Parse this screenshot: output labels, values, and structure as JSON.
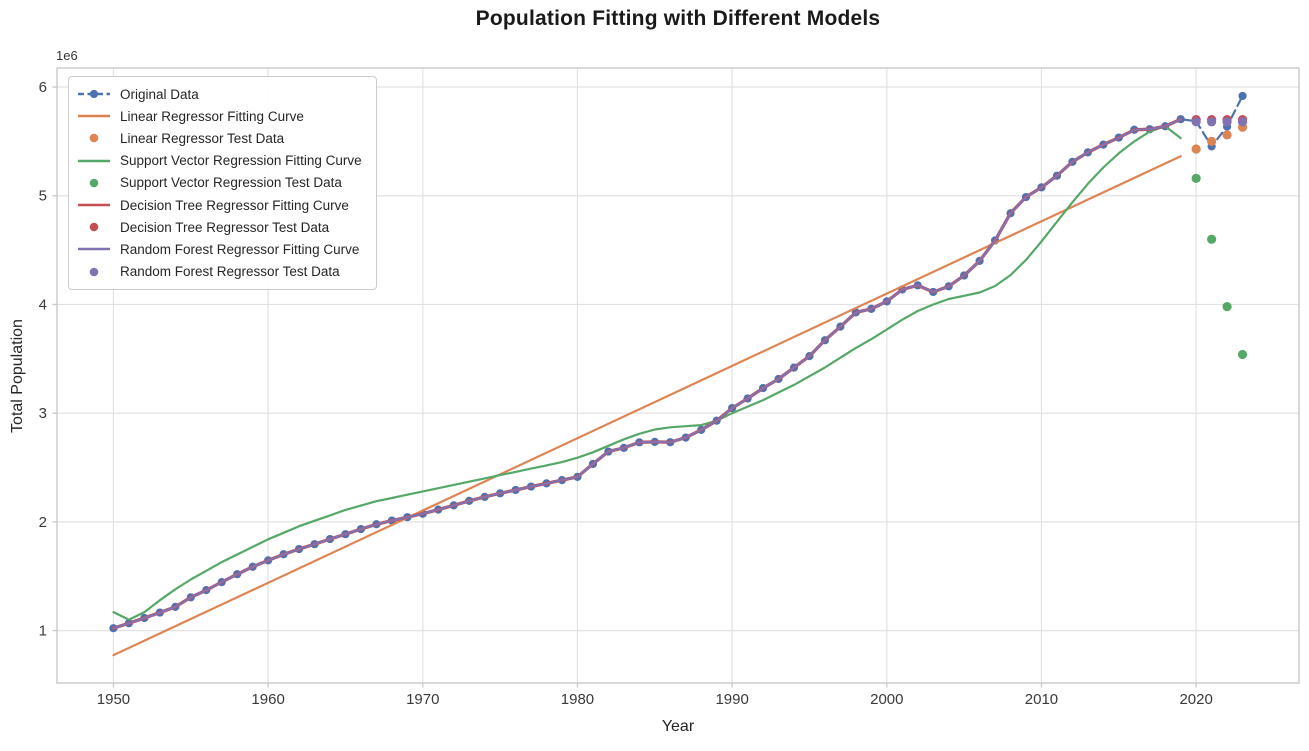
{
  "chart_data": {
    "type": "line",
    "title": "Population Fitting with Different Models",
    "xlabel": "Year",
    "ylabel": "Total Population",
    "y_offset_label": "1e6",
    "grid": true,
    "legend_position": "upper-left",
    "x_ticks": [
      1950,
      1960,
      1970,
      1980,
      1990,
      2000,
      2010,
      2020
    ],
    "y_ticks": [
      1,
      2,
      3,
      4,
      5,
      6
    ],
    "xlim": [
      1946.35,
      2026.65
    ],
    "ylim_e6": [
      0.518,
      6.175
    ],
    "colors": {
      "blue": "#4C72B0",
      "orange": "#DD8452",
      "green": "#55A868",
      "red": "#C44E52",
      "purple": "#8172B3",
      "grid": "#e2e2e2",
      "spine": "#c9c9c9",
      "title": "#1a1a1a",
      "tick_text": "#3a3a3a"
    },
    "arrays": {
      "all_years": [
        1950,
        1951,
        1952,
        1953,
        1954,
        1955,
        1956,
        1957,
        1958,
        1959,
        1960,
        1961,
        1962,
        1963,
        1964,
        1965,
        1966,
        1967,
        1968,
        1969,
        1970,
        1971,
        1972,
        1973,
        1974,
        1975,
        1976,
        1977,
        1978,
        1979,
        1980,
        1981,
        1982,
        1983,
        1984,
        1985,
        1986,
        1987,
        1988,
        1989,
        1990,
        1991,
        1992,
        1993,
        1994,
        1995,
        1996,
        1997,
        1998,
        1999,
        2000,
        2001,
        2002,
        2003,
        2004,
        2005,
        2006,
        2007,
        2008,
        2009,
        2010,
        2011,
        2012,
        2013,
        2014,
        2015,
        2016,
        2017,
        2018,
        2019,
        2020,
        2021,
        2022,
        2023
      ],
      "train_years": [
        1950,
        1951,
        1952,
        1953,
        1954,
        1955,
        1956,
        1957,
        1958,
        1959,
        1960,
        1961,
        1962,
        1963,
        1964,
        1965,
        1966,
        1967,
        1968,
        1969,
        1970,
        1971,
        1972,
        1973,
        1974,
        1975,
        1976,
        1977,
        1978,
        1979,
        1980,
        1981,
        1982,
        1983,
        1984,
        1985,
        1986,
        1987,
        1988,
        1989,
        1990,
        1991,
        1992,
        1993,
        1994,
        1995,
        1996,
        1997,
        1998,
        1999,
        2000,
        2001,
        2002,
        2003,
        2004,
        2005,
        2006,
        2007,
        2008,
        2009,
        2010,
        2011,
        2012,
        2013,
        2014,
        2015,
        2016,
        2017,
        2018,
        2019
      ],
      "test_years": [
        2020,
        2021,
        2022,
        2023
      ],
      "original_e6": [
        1.022,
        1.068,
        1.116,
        1.166,
        1.218,
        1.306,
        1.372,
        1.446,
        1.519,
        1.587,
        1.646,
        1.702,
        1.75,
        1.795,
        1.842,
        1.887,
        1.934,
        1.978,
        2.012,
        2.043,
        2.075,
        2.113,
        2.152,
        2.193,
        2.23,
        2.263,
        2.293,
        2.325,
        2.354,
        2.384,
        2.414,
        2.533,
        2.647,
        2.681,
        2.732,
        2.736,
        2.733,
        2.775,
        2.846,
        2.931,
        3.047,
        3.135,
        3.231,
        3.314,
        3.419,
        3.525,
        3.671,
        3.796,
        3.927,
        3.959,
        4.028,
        4.138,
        4.176,
        4.115,
        4.167,
        4.266,
        4.401,
        4.589,
        4.839,
        4.988,
        5.077,
        5.184,
        5.312,
        5.399,
        5.47,
        5.535,
        5.607,
        5.612,
        5.639,
        5.704,
        5.686,
        5.454,
        5.637,
        5.918
      ],
      "linear_years": [
        1950,
        2019
      ],
      "linear_fit_e6": [
        0.775,
        5.364
      ],
      "svr_fit_e6": [
        1.17,
        1.1,
        1.17,
        1.28,
        1.38,
        1.47,
        1.55,
        1.63,
        1.7,
        1.77,
        1.84,
        1.9,
        1.96,
        2.01,
        2.06,
        2.11,
        2.15,
        2.19,
        2.22,
        2.25,
        2.28,
        2.31,
        2.34,
        2.37,
        2.4,
        2.43,
        2.46,
        2.49,
        2.52,
        2.55,
        2.59,
        2.64,
        2.7,
        2.76,
        2.81,
        2.85,
        2.87,
        2.88,
        2.89,
        2.93,
        3.0,
        3.06,
        3.12,
        3.19,
        3.26,
        3.34,
        3.42,
        3.51,
        3.6,
        3.68,
        3.77,
        3.86,
        3.94,
        4.0,
        4.05,
        4.08,
        4.11,
        4.17,
        4.27,
        4.41,
        4.58,
        4.76,
        4.94,
        5.11,
        5.26,
        5.39,
        5.5,
        5.59,
        5.64,
        5.53
      ],
      "linear_test_e6": [
        5.43,
        5.5,
        5.56,
        5.63
      ],
      "svr_test_e6": [
        5.16,
        4.6,
        3.98,
        3.54
      ],
      "dt_test_e6": [
        5.7,
        5.7,
        5.7,
        5.7
      ],
      "rf_test_e6": [
        5.68,
        5.68,
        5.68,
        5.68
      ]
    },
    "series": [
      {
        "label": "Original Data",
        "kind": "line-marker",
        "dash": true,
        "color": "blue",
        "x": "all_years",
        "y": "original_e6"
      },
      {
        "label": "Linear Regressor Fitting Curve",
        "kind": "line",
        "color": "orange",
        "x": "linear_years",
        "y": "linear_fit_e6"
      },
      {
        "label": "Linear Regressor Test Data",
        "kind": "scatter",
        "color": "orange",
        "x": "test_years",
        "y": "linear_test_e6"
      },
      {
        "label": "Support Vector Regression Fitting Curve",
        "kind": "line",
        "color": "green",
        "x": "train_years",
        "y": "svr_fit_e6"
      },
      {
        "label": "Support Vector Regression Test Data",
        "kind": "scatter",
        "color": "green",
        "x": "test_years",
        "y": "svr_test_e6"
      },
      {
        "label": "Decision Tree Regressor Fitting Curve",
        "kind": "line",
        "color": "red",
        "x": "train_years",
        "y": "original_train_e6"
      },
      {
        "label": "Decision Tree Regressor Test Data",
        "kind": "scatter",
        "color": "red",
        "x": "test_years",
        "y": "dt_test_e6"
      },
      {
        "label": "Random Forest Regressor Fitting Curve",
        "kind": "line",
        "color": "purple",
        "x": "train_years",
        "y": "original_train_e6"
      },
      {
        "label": "Random Forest Regressor Test Data",
        "kind": "scatter",
        "color": "purple",
        "x": "test_years",
        "y": "rf_test_e6"
      }
    ]
  }
}
